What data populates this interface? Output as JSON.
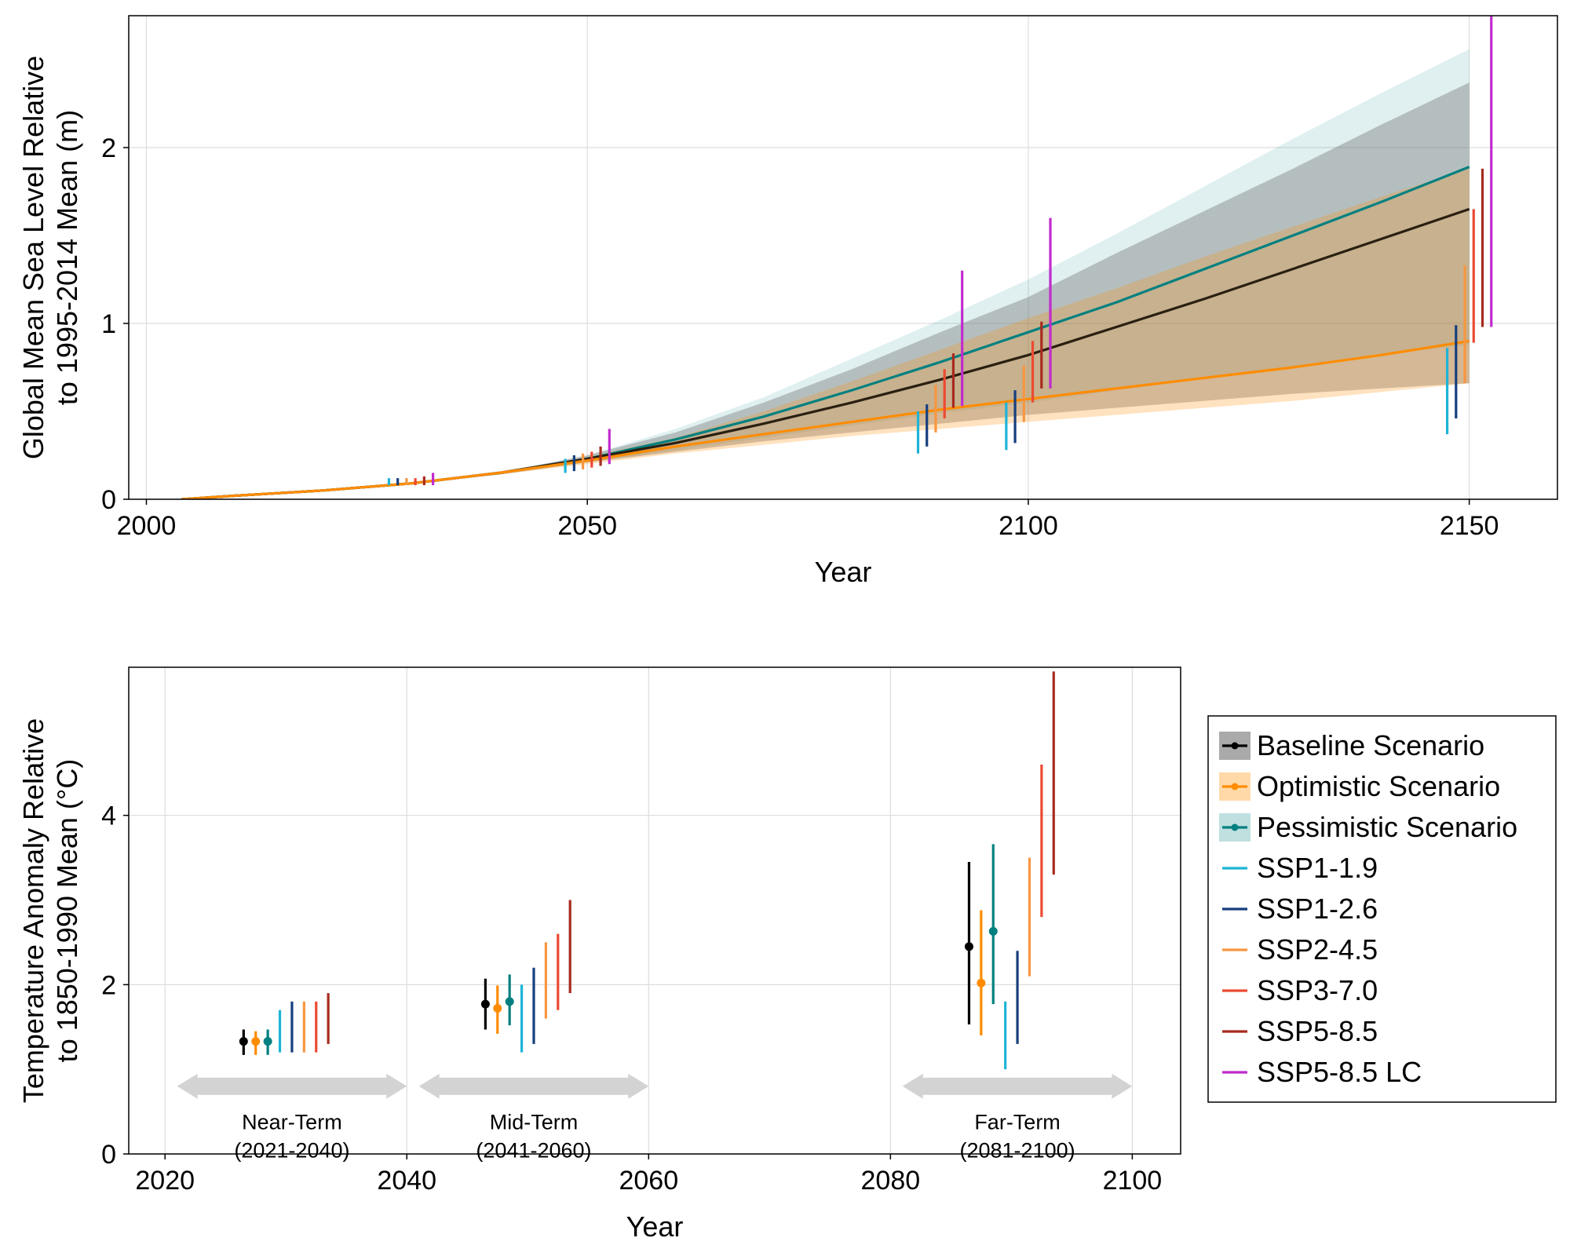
{
  "figure": {
    "legend": [
      {
        "label": "Baseline Scenario",
        "color": "#000000",
        "kind": "band-line-dot",
        "band_color": "#aaaaaa"
      },
      {
        "label": "Optimistic Scenario",
        "color": "#ff8c00",
        "kind": "band-line-dot",
        "band_color": "#ffd9a8"
      },
      {
        "label": "Pessimistic Scenario",
        "color": "#008080",
        "kind": "band-line-dot",
        "band_color": "#bfe0df"
      },
      {
        "label": "SSP1-1.9",
        "color": "#1eb4d6",
        "kind": "line"
      },
      {
        "label": "SSP1-2.6",
        "color": "#163f7e",
        "kind": "line"
      },
      {
        "label": "SSP2-4.5",
        "color": "#f89640",
        "kind": "line"
      },
      {
        "label": "SSP3-7.0",
        "color": "#ec4a32",
        "kind": "line"
      },
      {
        "label": "SSP5-8.5",
        "color": "#a82a1f",
        "kind": "line"
      },
      {
        "label": "SSP5-8.5 LC",
        "color": "#c02bce",
        "kind": "line"
      }
    ]
  },
  "chart_data": [
    {
      "type": "line",
      "xlabel": "Year",
      "ylabel": [
        "Global Mean Sea Level Relative",
        "to 1995-2014 Mean (m)"
      ],
      "xlim": [
        1998,
        2160
      ],
      "ylim": [
        0,
        2.75
      ],
      "xticks": [
        2000,
        2050,
        2100,
        2150
      ],
      "yticks": [
        0,
        1,
        2
      ],
      "grid": true,
      "series": [
        {
          "name": "Pessimistic Scenario",
          "color": "#008080",
          "x": [
            2004,
            2010,
            2020,
            2030,
            2040,
            2050,
            2060,
            2070,
            2080,
            2090,
            2100,
            2110,
            2120,
            2130,
            2140,
            2150
          ],
          "y": [
            0.0,
            0.02,
            0.05,
            0.09,
            0.15,
            0.23,
            0.34,
            0.47,
            0.62,
            0.78,
            0.95,
            1.12,
            1.31,
            1.5,
            1.69,
            1.89
          ],
          "band_low": [
            0.0,
            0.02,
            0.05,
            0.09,
            0.14,
            0.21,
            0.28,
            0.35,
            0.42,
            0.49,
            0.55,
            0.62,
            0.69,
            0.75,
            0.82,
            0.88
          ],
          "band_high": [
            0.0,
            0.02,
            0.05,
            0.09,
            0.15,
            0.25,
            0.4,
            0.58,
            0.8,
            1.02,
            1.25,
            1.51,
            1.78,
            2.05,
            2.31,
            2.56
          ],
          "band_color": "#008080",
          "band_opacity": 0.12
        },
        {
          "name": "Baseline Scenario",
          "color": "#2a1f10",
          "x": [
            2004,
            2010,
            2020,
            2030,
            2040,
            2050,
            2060,
            2070,
            2080,
            2090,
            2100,
            2110,
            2120,
            2130,
            2140,
            2150
          ],
          "y": [
            0.0,
            0.02,
            0.05,
            0.09,
            0.15,
            0.23,
            0.32,
            0.43,
            0.55,
            0.68,
            0.82,
            0.98,
            1.14,
            1.31,
            1.48,
            1.65
          ],
          "band_low": [
            0.0,
            0.02,
            0.05,
            0.09,
            0.14,
            0.21,
            0.27,
            0.33,
            0.38,
            0.43,
            0.48,
            0.52,
            0.56,
            0.6,
            0.63,
            0.66
          ],
          "band_high": [
            0.0,
            0.02,
            0.05,
            0.09,
            0.15,
            0.25,
            0.38,
            0.55,
            0.74,
            0.95,
            1.15,
            1.4,
            1.64,
            1.88,
            2.13,
            2.37
          ],
          "band_color": "#7a7a7a",
          "band_opacity": 0.42
        },
        {
          "name": "Optimistic Scenario",
          "color": "#ff8c00",
          "x": [
            2004,
            2010,
            2020,
            2030,
            2040,
            2050,
            2060,
            2070,
            2080,
            2090,
            2100,
            2110,
            2120,
            2130,
            2140,
            2150
          ],
          "y": [
            0.0,
            0.02,
            0.05,
            0.09,
            0.15,
            0.22,
            0.3,
            0.37,
            0.44,
            0.51,
            0.57,
            0.63,
            0.69,
            0.75,
            0.82,
            0.9
          ],
          "band_low": [
            0.0,
            0.02,
            0.05,
            0.09,
            0.14,
            0.2,
            0.26,
            0.31,
            0.36,
            0.4,
            0.44,
            0.48,
            0.52,
            0.56,
            0.61,
            0.66
          ],
          "band_high": [
            0.0,
            0.02,
            0.05,
            0.09,
            0.15,
            0.24,
            0.35,
            0.5,
            0.67,
            0.85,
            1.03,
            1.2,
            1.38,
            1.55,
            1.72,
            1.88
          ],
          "band_color": "#ff8c00",
          "band_opacity": 0.25
        }
      ],
      "ranges": [
        {
          "scenario": "SSP1-1.9",
          "x": 2027.5,
          "low": 0.08,
          "high": 0.12
        },
        {
          "scenario": "SSP1-2.6",
          "x": 2028.5,
          "low": 0.08,
          "high": 0.12
        },
        {
          "scenario": "SSP2-4.5",
          "x": 2029.5,
          "low": 0.08,
          "high": 0.12
        },
        {
          "scenario": "SSP3-7.0",
          "x": 2030.5,
          "low": 0.08,
          "high": 0.12
        },
        {
          "scenario": "SSP5-8.5",
          "x": 2031.5,
          "low": 0.08,
          "high": 0.13
        },
        {
          "scenario": "SSP5-8.5 LC",
          "x": 2032.5,
          "low": 0.08,
          "high": 0.15
        },
        {
          "scenario": "SSP1-1.9",
          "x": 2047.5,
          "low": 0.15,
          "high": 0.23
        },
        {
          "scenario": "SSP1-2.6",
          "x": 2048.5,
          "low": 0.16,
          "high": 0.25
        },
        {
          "scenario": "SSP2-4.5",
          "x": 2049.5,
          "low": 0.17,
          "high": 0.26
        },
        {
          "scenario": "SSP3-7.0",
          "x": 2050.5,
          "low": 0.18,
          "high": 0.27
        },
        {
          "scenario": "SSP5-8.5",
          "x": 2051.5,
          "low": 0.19,
          "high": 0.3
        },
        {
          "scenario": "SSP5-8.5 LC",
          "x": 2052.5,
          "low": 0.2,
          "high": 0.4
        },
        {
          "scenario": "SSP1-1.9",
          "x": 2087.5,
          "low": 0.26,
          "high": 0.5
        },
        {
          "scenario": "SSP1-2.6",
          "x": 2088.5,
          "low": 0.3,
          "high": 0.54
        },
        {
          "scenario": "SSP2-4.5",
          "x": 2089.5,
          "low": 0.38,
          "high": 0.65
        },
        {
          "scenario": "SSP3-7.0",
          "x": 2090.5,
          "low": 0.46,
          "high": 0.74
        },
        {
          "scenario": "SSP5-8.5",
          "x": 2091.5,
          "low": 0.52,
          "high": 0.83
        },
        {
          "scenario": "SSP5-8.5 LC",
          "x": 2092.5,
          "low": 0.53,
          "high": 1.3
        },
        {
          "scenario": "SSP1-1.9",
          "x": 2097.5,
          "low": 0.28,
          "high": 0.55
        },
        {
          "scenario": "SSP1-2.6",
          "x": 2098.5,
          "low": 0.32,
          "high": 0.62
        },
        {
          "scenario": "SSP2-4.5",
          "x": 2099.5,
          "low": 0.44,
          "high": 0.76
        },
        {
          "scenario": "SSP3-7.0",
          "x": 2100.5,
          "low": 0.55,
          "high": 0.9
        },
        {
          "scenario": "SSP5-8.5",
          "x": 2101.5,
          "low": 0.63,
          "high": 1.01
        },
        {
          "scenario": "SSP5-8.5 LC",
          "x": 2102.5,
          "low": 0.63,
          "high": 1.6
        },
        {
          "scenario": "SSP1-1.9",
          "x": 2147.5,
          "low": 0.37,
          "high": 0.86
        },
        {
          "scenario": "SSP1-2.6",
          "x": 2148.5,
          "low": 0.46,
          "high": 0.99
        },
        {
          "scenario": "SSP2-4.5",
          "x": 2149.5,
          "low": 0.66,
          "high": 1.33
        },
        {
          "scenario": "SSP3-7.0",
          "x": 2150.5,
          "low": 0.89,
          "high": 1.65
        },
        {
          "scenario": "SSP5-8.5",
          "x": 2151.5,
          "low": 0.98,
          "high": 1.88
        },
        {
          "scenario": "SSP5-8.5 LC",
          "x": 2152.5,
          "low": 0.98,
          "high": 2.75
        }
      ]
    },
    {
      "type": "errorbar",
      "xlabel": "Year",
      "ylabel": [
        "Temperature Anomaly Relative",
        "to 1850-1990 Mean (°C)"
      ],
      "xlim": [
        2017,
        2104
      ],
      "ylim": [
        0,
        5.75
      ],
      "xticks": [
        2020,
        2040,
        2060,
        2080,
        2100
      ],
      "yticks": [
        0,
        2,
        4
      ],
      "grid": true,
      "points": [
        {
          "scenario": "Baseline Scenario",
          "x": 2026.5,
          "y": 1.33,
          "low": 1.17,
          "high": 1.47
        },
        {
          "scenario": "Optimistic Scenario",
          "x": 2027.5,
          "y": 1.33,
          "low": 1.17,
          "high": 1.45
        },
        {
          "scenario": "Pessimistic Scenario",
          "x": 2028.5,
          "y": 1.33,
          "low": 1.17,
          "high": 1.47
        },
        {
          "scenario": "Baseline Scenario",
          "x": 2046.5,
          "y": 1.77,
          "low": 1.47,
          "high": 2.07
        },
        {
          "scenario": "Optimistic Scenario",
          "x": 2047.5,
          "y": 1.72,
          "low": 1.42,
          "high": 1.99
        },
        {
          "scenario": "Pessimistic Scenario",
          "x": 2048.5,
          "y": 1.8,
          "low": 1.52,
          "high": 2.12
        },
        {
          "scenario": "Baseline Scenario",
          "x": 2086.5,
          "y": 2.45,
          "low": 1.53,
          "high": 3.45
        },
        {
          "scenario": "Optimistic Scenario",
          "x": 2087.5,
          "y": 2.02,
          "low": 1.4,
          "high": 2.88
        },
        {
          "scenario": "Pessimistic Scenario",
          "x": 2088.5,
          "y": 2.63,
          "low": 1.77,
          "high": 3.66
        }
      ],
      "ranges": [
        {
          "scenario": "SSP1-1.9",
          "x": 2029.5,
          "low": 1.2,
          "high": 1.7
        },
        {
          "scenario": "SSP1-2.6",
          "x": 2030.5,
          "low": 1.2,
          "high": 1.8
        },
        {
          "scenario": "SSP2-4.5",
          "x": 2031.5,
          "low": 1.2,
          "high": 1.8
        },
        {
          "scenario": "SSP3-7.0",
          "x": 2032.5,
          "low": 1.2,
          "high": 1.8
        },
        {
          "scenario": "SSP5-8.5",
          "x": 2033.5,
          "low": 1.3,
          "high": 1.9
        },
        {
          "scenario": "SSP1-1.9",
          "x": 2049.5,
          "low": 1.2,
          "high": 2.0
        },
        {
          "scenario": "SSP1-2.6",
          "x": 2050.5,
          "low": 1.3,
          "high": 2.2
        },
        {
          "scenario": "SSP2-4.5",
          "x": 2051.5,
          "low": 1.6,
          "high": 2.5
        },
        {
          "scenario": "SSP3-7.0",
          "x": 2052.5,
          "low": 1.7,
          "high": 2.6
        },
        {
          "scenario": "SSP5-8.5",
          "x": 2053.5,
          "low": 1.9,
          "high": 3.0
        },
        {
          "scenario": "SSP1-1.9",
          "x": 2089.5,
          "low": 1.0,
          "high": 1.8
        },
        {
          "scenario": "SSP1-2.6",
          "x": 2090.5,
          "low": 1.3,
          "high": 2.4
        },
        {
          "scenario": "SSP2-4.5",
          "x": 2091.5,
          "low": 2.1,
          "high": 3.5
        },
        {
          "scenario": "SSP3-7.0",
          "x": 2092.5,
          "low": 2.8,
          "high": 4.6
        },
        {
          "scenario": "SSP5-8.5",
          "x": 2093.5,
          "low": 3.3,
          "high": 5.7
        }
      ],
      "periods": [
        {
          "label": "Near-Term",
          "sublabel": "(2021-2040)",
          "start": 2021,
          "end": 2040,
          "y": 0.8
        },
        {
          "label": "Mid-Term",
          "sublabel": "(2041-2060)",
          "start": 2041,
          "end": 2060,
          "y": 0.8
        },
        {
          "label": "Far-Term",
          "sublabel": "(2081-2100)",
          "start": 2081,
          "end": 2100,
          "y": 0.8
        }
      ]
    }
  ]
}
